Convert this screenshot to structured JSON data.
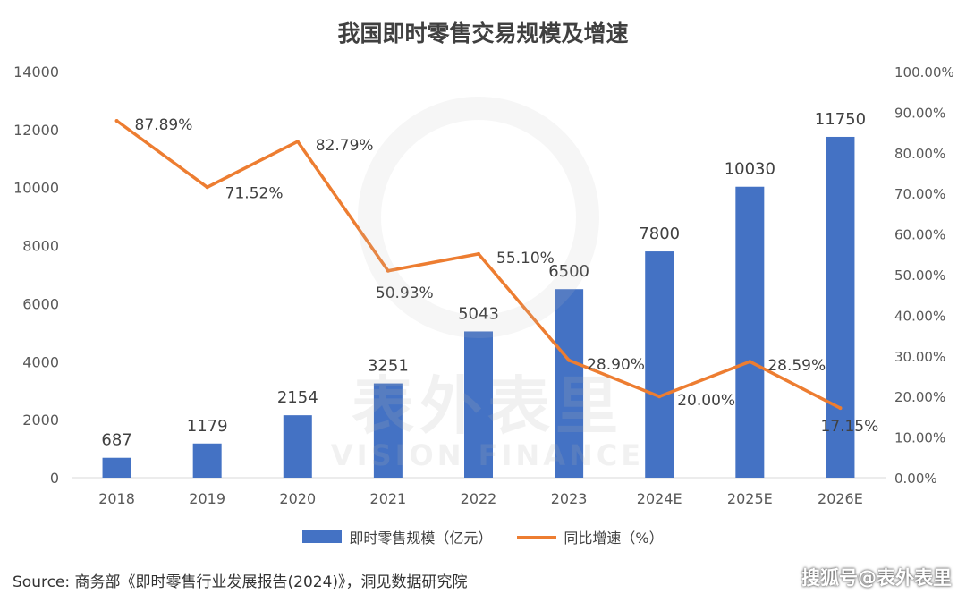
{
  "chart_data": {
    "type": "bar",
    "title": "我国即时零售交易规模及增速",
    "categories": [
      "2018",
      "2019",
      "2020",
      "2021",
      "2022",
      "2023",
      "2024E",
      "2025E",
      "2026E"
    ],
    "series": [
      {
        "name": "即时零售规模（亿元）",
        "type": "bar",
        "axis": "left",
        "color": "#4472c4",
        "values": [
          687,
          1179,
          2154,
          3251,
          5043,
          6500,
          7800,
          10030,
          11750
        ],
        "labels": [
          "687",
          "1179",
          "2154",
          "3251",
          "5043",
          "6500",
          "7800",
          "10030",
          "11750"
        ]
      },
      {
        "name": "同比增速（%）",
        "type": "line",
        "axis": "right",
        "color": "#ed7d31",
        "values": [
          87.89,
          71.52,
          82.79,
          50.93,
          55.1,
          28.9,
          20.0,
          28.59,
          17.15
        ],
        "labels": [
          "87.89%",
          "71.52%",
          "82.79%",
          "50.93%",
          "55.10%",
          "28.90%",
          "20.00%",
          "28.59%",
          "17.15%"
        ]
      }
    ],
    "y_left": {
      "range": [
        0,
        14000
      ],
      "ticks": [
        "0",
        "2000",
        "4000",
        "6000",
        "8000",
        "10000",
        "12000",
        "14000"
      ]
    },
    "y_right": {
      "range": [
        0,
        100
      ],
      "ticks": [
        "0.00%",
        "10.00%",
        "20.00%",
        "30.00%",
        "40.00%",
        "50.00%",
        "60.00%",
        "70.00%",
        "80.00%",
        "90.00%",
        "100.00%"
      ]
    },
    "grid": false,
    "legend_position": "bottom"
  },
  "source": "Source:  商务部《即时零售行业发展报告(2024)》，洞见数据研究院",
  "credit": "搜狐号@表外表里",
  "watermark": {
    "cn": "表外表里",
    "en": "VISION FINANCE"
  }
}
